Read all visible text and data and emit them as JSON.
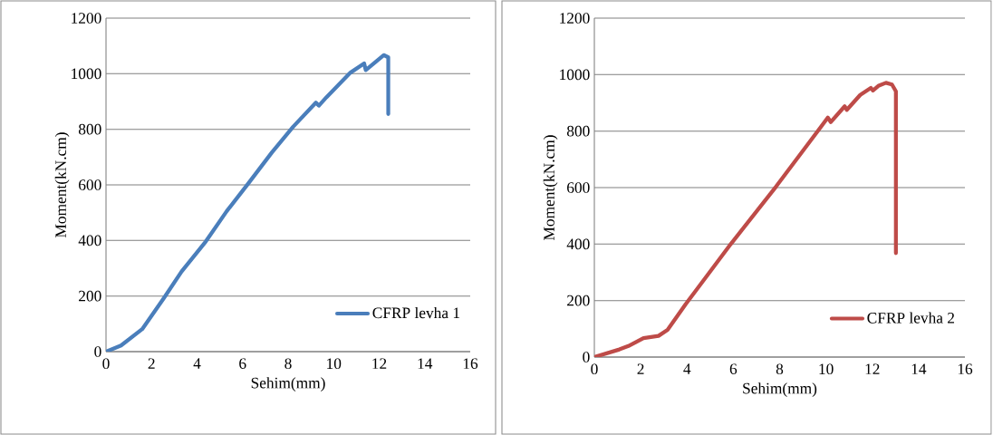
{
  "chart_data": [
    {
      "type": "line",
      "xlabel": "Sehim(mm)",
      "ylabel": "Moment(kN.cm)",
      "xlim": [
        0,
        16
      ],
      "ylim": [
        0,
        1200
      ],
      "xticks": [
        0,
        2,
        4,
        6,
        8,
        10,
        12,
        14,
        16
      ],
      "yticks": [
        0,
        200,
        400,
        600,
        800,
        1000,
        1200
      ],
      "grid": "y",
      "legend": "bottom right",
      "series": [
        {
          "name": "CFRP levha 1",
          "color": "#4a7ebb",
          "x": [
            0,
            0.66,
            1.59,
            2.52,
            3.32,
            4.38,
            5.3,
            6.23,
            7.29,
            8.22,
            9.22,
            9.35,
            9.68,
            10.74,
            11.34,
            11.41,
            12.2,
            12.4,
            12.4
          ],
          "values": [
            0,
            22,
            81,
            190,
            288,
            396,
            505,
            603,
            717,
            809,
            896,
            885,
            915,
            1004,
            1037,
            1013,
            1067,
            1059,
            855
          ]
        }
      ]
    },
    {
      "type": "line",
      "xlabel": "Sehim(mm)",
      "ylabel": "Moment(kN.cm)",
      "xlim": [
        0,
        16
      ],
      "ylim": [
        0,
        1200
      ],
      "xticks": [
        0,
        2,
        4,
        6,
        8,
        10,
        12,
        14,
        16
      ],
      "yticks": [
        0,
        200,
        400,
        600,
        800,
        1000,
        1200
      ],
      "grid": "y",
      "legend": "bottom right",
      "series": [
        {
          "name": "CFRP levha 2",
          "color": "#be4b48",
          "x": [
            0,
            1.08,
            1.47,
            2.12,
            2.77,
            3.16,
            3.94,
            5.89,
            7.84,
            9.79,
            10.08,
            10.21,
            10.81,
            10.9,
            11.48,
            11.94,
            12.03,
            12.26,
            12.59,
            12.85,
            13.02,
            13.02
          ],
          "values": [
            0,
            27,
            39,
            67,
            75,
            96,
            187,
            400,
            603,
            816,
            848,
            832,
            888,
            875,
            928,
            953,
            944,
            960,
            971,
            965,
            941,
            368
          ]
        }
      ]
    }
  ]
}
